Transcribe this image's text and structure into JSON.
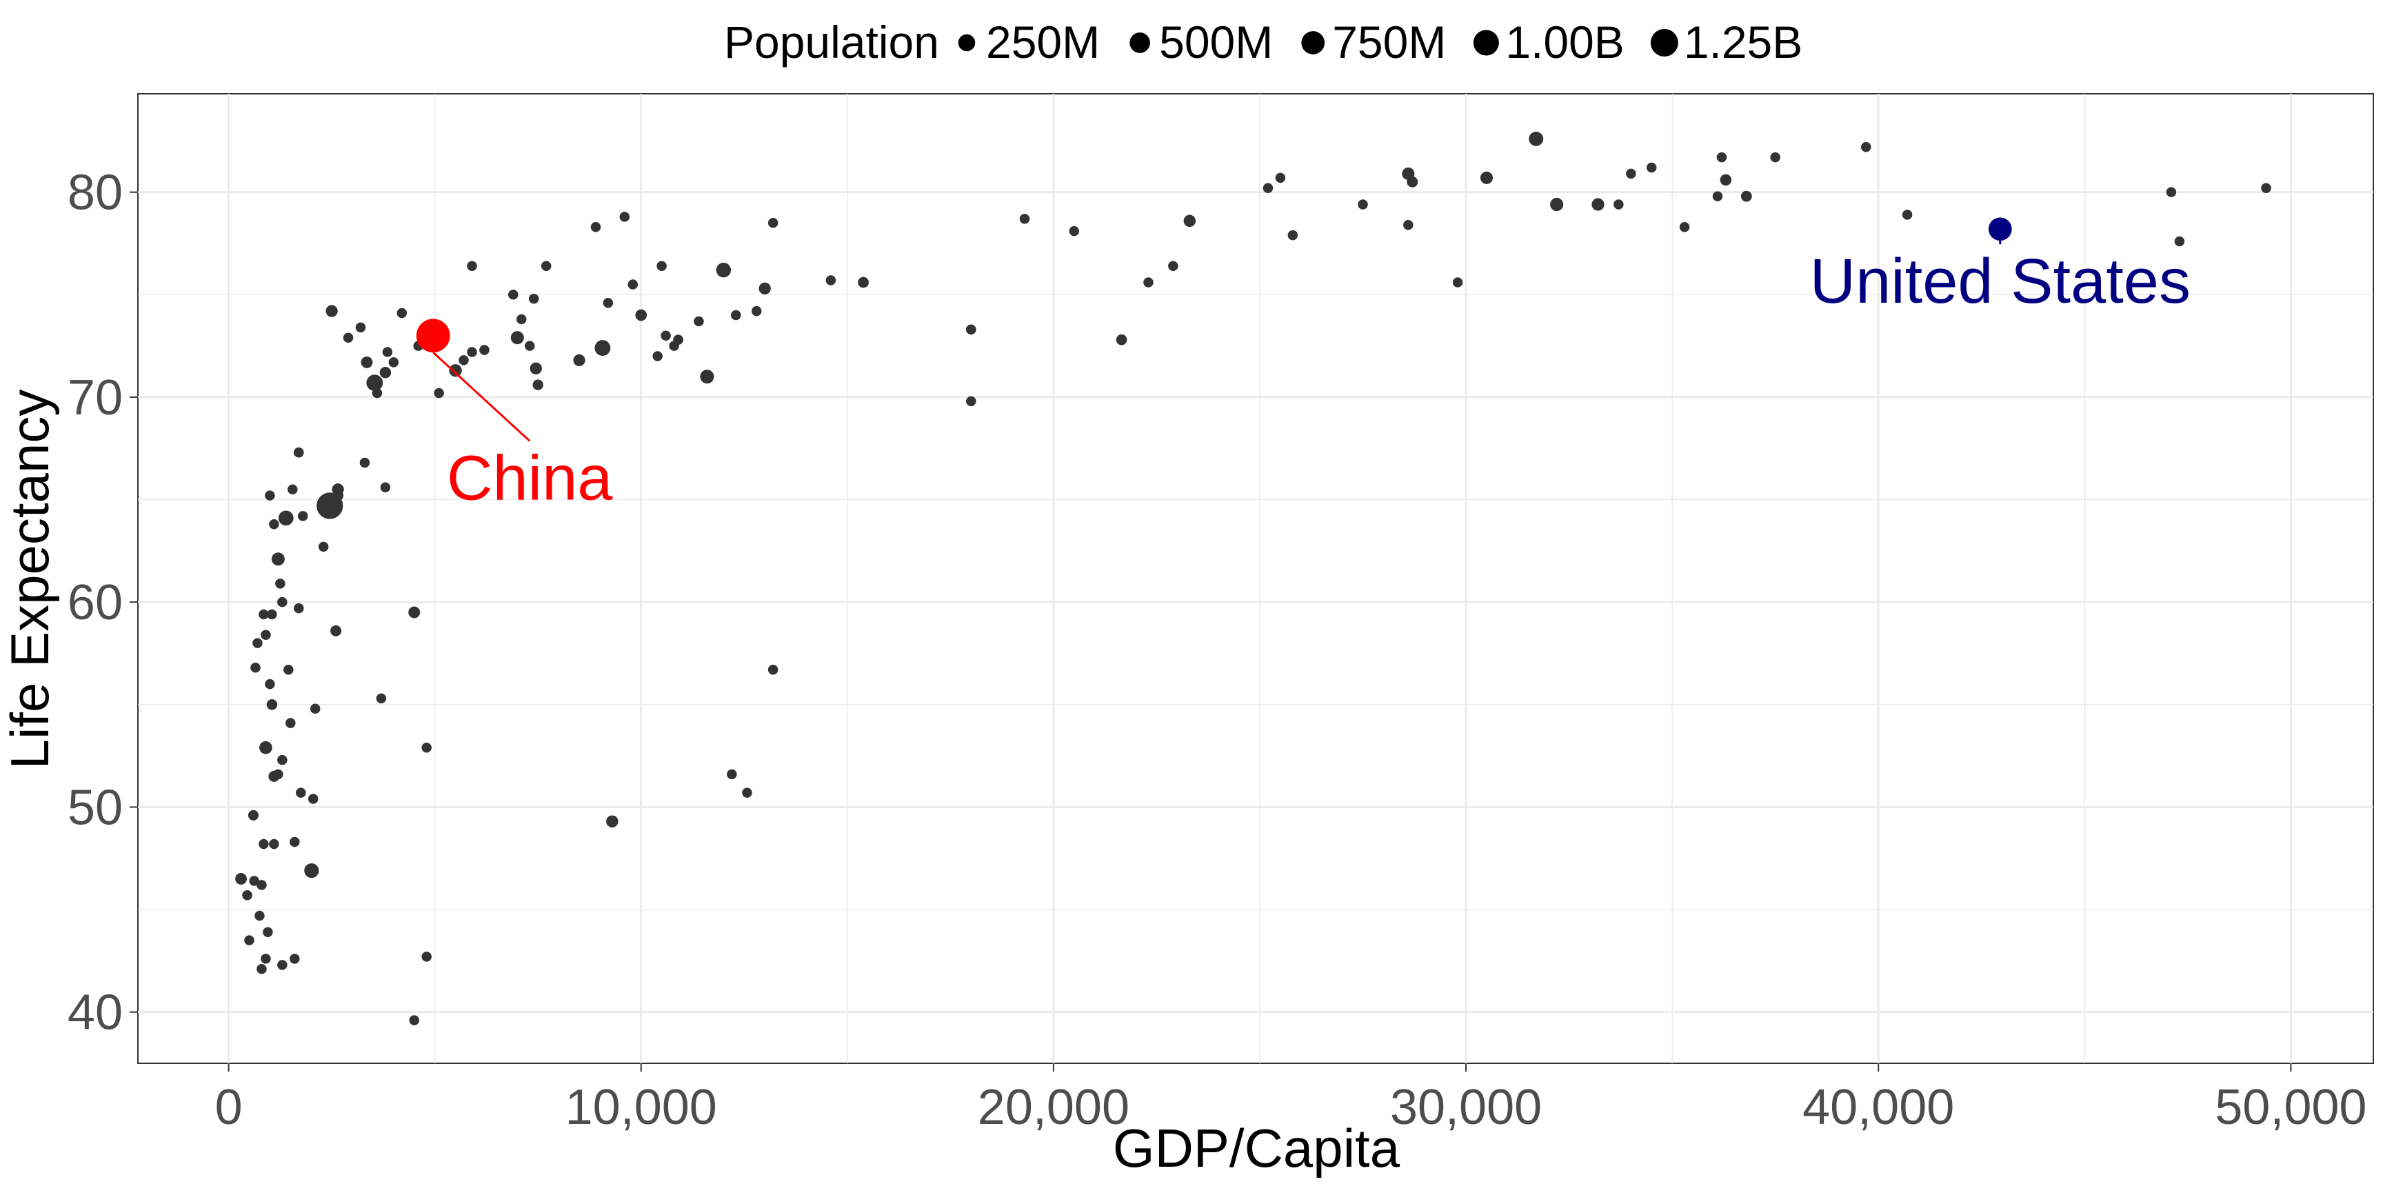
{
  "chart_data": {
    "type": "scatter",
    "title": "",
    "xlabel": "GDP/Capita",
    "ylabel": "Life Expectancy",
    "xlim": [
      -2200,
      52000
    ],
    "ylim": [
      37.5,
      84.8
    ],
    "x_ticks": [
      0,
      10000,
      20000,
      30000,
      40000,
      50000
    ],
    "x_tick_labels": [
      "0",
      "10,000",
      "20,000",
      "30,000",
      "40,000",
      "50,000"
    ],
    "y_ticks": [
      40,
      50,
      60,
      70,
      80
    ],
    "y_tick_labels": [
      "40",
      "50",
      "60",
      "70",
      "80"
    ],
    "grid": true,
    "colors": {
      "point": "#333333",
      "china": "#ff0000",
      "usa": "#000080",
      "grid": "#ebebeb",
      "panel_border": "#333333"
    },
    "legend": {
      "title": "Population",
      "placement": "top",
      "entries": [
        {
          "label": "250M",
          "value": 250
        },
        {
          "label": "500M",
          "value": 500
        },
        {
          "label": "750M",
          "value": 750
        },
        {
          "label": "1.00B",
          "value": 1000
        },
        {
          "label": "1.25B",
          "value": 1250
        }
      ]
    },
    "annotations": [
      {
        "label": "China",
        "x": 4959,
        "y": 73.0,
        "pop": 1319,
        "color": "#ff0000",
        "label_x": 7300,
        "label_y": 65.0
      },
      {
        "label": "United States",
        "x": 42952,
        "y": 78.2,
        "pop": 301,
        "color": "#000080",
        "label_x": 42952,
        "label_y": 74.6
      }
    ],
    "points": [
      [
        2452,
        64.7,
        1110
      ],
      [
        3540,
        70.7,
        224
      ],
      [
        9066,
        72.4,
        190
      ],
      [
        12000,
        76.2,
        140
      ],
      [
        11600,
        71.0,
        105
      ],
      [
        2010,
        46.9,
        135
      ],
      [
        1390,
        64.1,
        150
      ],
      [
        31700,
        82.6,
        127
      ],
      [
        1200,
        62.1,
        80
      ],
      [
        9300,
        49.3,
        48
      ],
      [
        5500,
        71.3,
        65
      ],
      [
        7000,
        72.9,
        80
      ],
      [
        13000,
        75.3,
        45
      ],
      [
        2650,
        65.5,
        45
      ],
      [
        300,
        46.5,
        38
      ],
      [
        900,
        52.9,
        70
      ],
      [
        28600,
        80.9,
        60
      ],
      [
        30500,
        80.7,
        60
      ],
      [
        32200,
        79.4,
        82
      ],
      [
        33200,
        79.4,
        61
      ],
      [
        36300,
        80.6,
        33
      ],
      [
        23300,
        78.6,
        48
      ],
      [
        10000,
        74.0,
        35
      ],
      [
        7450,
        71.4,
        45
      ],
      [
        2500,
        74.2,
        45
      ],
      [
        8500,
        71.8,
        44
      ],
      [
        3350,
        71.7,
        38
      ],
      [
        1050,
        55.0,
        20
      ],
      [
        2600,
        58.6,
        25
      ],
      [
        4500,
        59.5,
        40
      ],
      [
        3800,
        71.2,
        32
      ],
      [
        15389,
        75.6,
        22
      ],
      [
        28700,
        80.5,
        24
      ],
      [
        36800,
        79.8,
        23
      ],
      [
        1100,
        51.5,
        25
      ],
      [
        600,
        49.6,
        15
      ],
      [
        12200,
        51.6,
        10
      ],
      [
        12570,
        50.7,
        10
      ],
      [
        13200,
        56.7,
        10
      ],
      [
        18000,
        69.8,
        10
      ],
      [
        18000,
        73.3,
        12
      ],
      [
        19300,
        78.7,
        10
      ],
      [
        20500,
        78.1,
        10
      ],
      [
        21650,
        72.8,
        20
      ],
      [
        22300,
        75.6,
        10
      ],
      [
        22900,
        76.4,
        10
      ],
      [
        25200,
        80.2,
        10
      ],
      [
        25500,
        80.7,
        10
      ],
      [
        25800,
        77.9,
        10
      ],
      [
        27500,
        79.4,
        10
      ],
      [
        28600,
        78.4,
        10
      ],
      [
        29800,
        75.6,
        10
      ],
      [
        33700,
        79.4,
        10
      ],
      [
        34000,
        80.9,
        10
      ],
      [
        34500,
        81.2,
        10
      ],
      [
        35300,
        78.3,
        10
      ],
      [
        36200,
        81.7,
        10
      ],
      [
        36100,
        79.8,
        10
      ],
      [
        37500,
        81.7,
        10
      ],
      [
        39700,
        82.2,
        10
      ],
      [
        40700,
        78.9,
        10
      ],
      [
        47100,
        80.0,
        10
      ],
      [
        47300,
        77.6,
        10
      ],
      [
        49400,
        80.2,
        10
      ],
      [
        14600,
        75.7,
        10
      ],
      [
        13200,
        78.5,
        10
      ],
      [
        12800,
        74.2,
        10
      ],
      [
        12300,
        74.0,
        10
      ],
      [
        11400,
        73.7,
        10
      ],
      [
        10900,
        72.8,
        12
      ],
      [
        10800,
        72.5,
        10
      ],
      [
        10600,
        73.0,
        10
      ],
      [
        10400,
        72.0,
        10
      ],
      [
        10500,
        76.4,
        10
      ],
      [
        9600,
        78.8,
        10
      ],
      [
        9800,
        75.5,
        10
      ],
      [
        9200,
        74.6,
        10
      ],
      [
        8900,
        78.3,
        10
      ],
      [
        7700,
        76.4,
        10
      ],
      [
        7400,
        74.8,
        10
      ],
      [
        7100,
        73.8,
        10
      ],
      [
        7300,
        72.5,
        10
      ],
      [
        7500,
        70.6,
        18
      ],
      [
        6900,
        75.0,
        10
      ],
      [
        6200,
        72.3,
        10
      ],
      [
        5900,
        72.2,
        10
      ],
      [
        5900,
        76.4,
        10
      ],
      [
        5700,
        71.8,
        10
      ],
      [
        5100,
        70.2,
        10
      ],
      [
        4600,
        72.5,
        10
      ],
      [
        4200,
        74.1,
        10
      ],
      [
        4000,
        71.7,
        10
      ],
      [
        3850,
        72.2,
        10
      ],
      [
        3600,
        70.2,
        10
      ],
      [
        3200,
        73.4,
        10
      ],
      [
        3300,
        66.8,
        10
      ],
      [
        2900,
        72.9,
        10
      ],
      [
        2650,
        65.2,
        25
      ],
      [
        2300,
        62.7,
        10
      ],
      [
        2100,
        54.8,
        10
      ],
      [
        2050,
        50.4,
        10
      ],
      [
        1800,
        64.2,
        10
      ],
      [
        1700,
        67.3,
        12
      ],
      [
        1700,
        59.7,
        10
      ],
      [
        1750,
        50.7,
        10
      ],
      [
        1550,
        65.5,
        10
      ],
      [
        1600,
        48.3,
        10
      ],
      [
        1500,
        54.1,
        10
      ],
      [
        1450,
        56.7,
        10
      ],
      [
        1300,
        60.0,
        10
      ],
      [
        1250,
        60.9,
        10
      ],
      [
        1300,
        52.3,
        10
      ],
      [
        1200,
        51.6,
        10
      ],
      [
        1100,
        63.8,
        10
      ],
      [
        1000,
        65.2,
        10
      ],
      [
        1050,
        59.4,
        10
      ],
      [
        1000,
        56.0,
        10
      ],
      [
        950,
        43.9,
        10
      ],
      [
        900,
        58.4,
        10
      ],
      [
        850,
        59.4,
        10
      ],
      [
        850,
        48.2,
        10
      ],
      [
        800,
        46.2,
        10
      ],
      [
        750,
        44.7,
        10
      ],
      [
        700,
        58.0,
        10
      ],
      [
        650,
        56.8,
        10
      ],
      [
        620,
        46.4,
        10
      ],
      [
        500,
        43.5,
        10
      ],
      [
        450,
        45.7,
        10
      ],
      [
        1100,
        48.2,
        10
      ],
      [
        800,
        42.1,
        10
      ],
      [
        900,
        42.6,
        10
      ],
      [
        1300,
        42.3,
        10
      ],
      [
        1600,
        42.6,
        10
      ],
      [
        4800,
        52.9,
        10
      ],
      [
        4800,
        42.7,
        10
      ],
      [
        4500,
        39.6,
        10
      ],
      [
        3700,
        55.3,
        10
      ],
      [
        3800,
        65.6,
        10
      ]
    ]
  }
}
